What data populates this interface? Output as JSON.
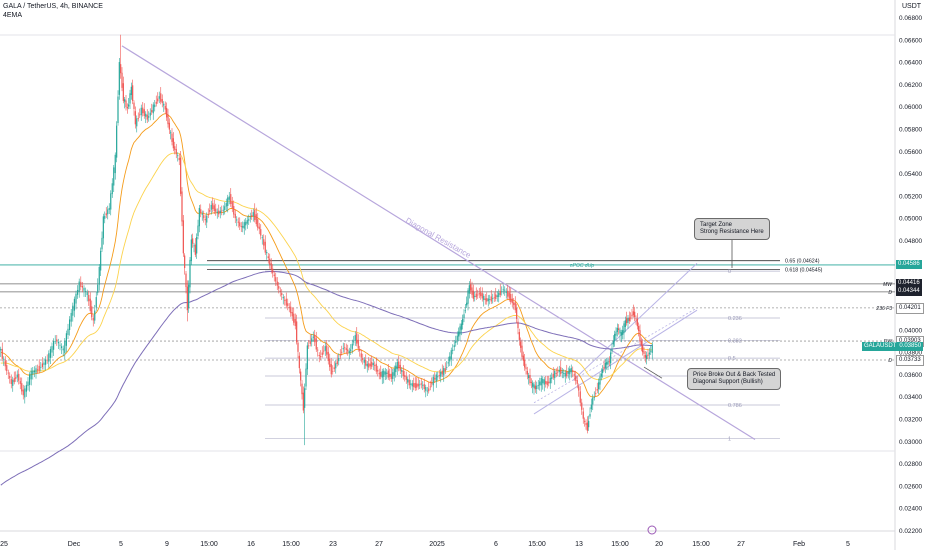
{
  "header": {
    "title": "GALA / TetherUS, 4h, BINANCE",
    "indicator": "4EMA",
    "currency": "USDT"
  },
  "colors": {
    "up": "#26a69a",
    "down": "#ef5350",
    "ema_fast": "#f59c1a",
    "ema_mid": "#fcd34d",
    "ema_slow": "#7e6fb8",
    "diag": "#b7a6dc",
    "channel": "#b9b4e6",
    "fib": "#b6b6cc",
    "level": "#333333",
    "green_label": "#26a69a"
  },
  "chart_data": {
    "type": "candlestick",
    "ylim": [
      0.022,
      0.068
    ],
    "y_ticks": [
      "0.06800",
      "0.06600",
      "0.06400",
      "0.06200",
      "0.06000",
      "0.05800",
      "0.05600",
      "0.05400",
      "0.05200",
      "0.05000",
      "0.04800",
      "0.04600",
      "0.04400",
      "0.04200",
      "0.04000",
      "0.03800",
      "0.03600",
      "0.03400",
      "0.03200",
      "0.03000",
      "0.02800",
      "0.02600",
      "0.02400",
      "0.02200"
    ],
    "x_ticks": [
      "25",
      "Dec",
      "5",
      "9",
      "15:00",
      "16",
      "15:00",
      "23",
      "27",
      "2025",
      "6",
      "15:00",
      "13",
      "15:00",
      "20",
      "15:00",
      "27",
      "Feb",
      "5"
    ],
    "price_labels": [
      {
        "text": "0.04586",
        "value": 0.04586,
        "style": "green"
      },
      {
        "text": "0.04416",
        "value": 0.04416,
        "style": "dark",
        "tag": "MW"
      },
      {
        "text": "0.04344",
        "value": 0.04344,
        "style": "dark",
        "tag": "D"
      },
      {
        "text": "0.04201",
        "value": 0.04201,
        "style": "plain",
        "tag": "236 F3"
      },
      {
        "text": "0.03903",
        "value": 0.03903,
        "style": "plain",
        "tag": "DW"
      },
      {
        "text": "GALAUSDT",
        "value": 0.0385,
        "style": "green",
        "extra": "0.03850"
      },
      {
        "text": "0.03733",
        "value": 0.03733,
        "style": "plain",
        "tag": "D"
      }
    ],
    "levels": [
      {
        "value": 0.04416,
        "label": "MW"
      },
      {
        "value": 0.04344,
        "label": "D"
      },
      {
        "value": 0.04201,
        "label": "236 F3"
      },
      {
        "value": 0.03903,
        "label": "DW"
      },
      {
        "value": 0.03733,
        "label": "D"
      }
    ],
    "annotations": [
      {
        "text": "0.65 (0.04624)",
        "value": 0.04624
      },
      {
        "text": "0.618 (0.04545)",
        "value": 0.04545
      },
      {
        "text": "nPOC dUp",
        "value": 0.04586
      }
    ],
    "fib": [
      {
        "label": "0",
        "value": 0.0453
      },
      {
        "label": "0.236",
        "value": 0.0411
      },
      {
        "label": "0.382",
        "value": 0.0391
      },
      {
        "label": "0.5",
        "value": 0.0375
      },
      {
        "label": "0.618",
        "value": 0.0359
      },
      {
        "label": "0.786",
        "value": 0.0333
      },
      {
        "label": "1",
        "value": 0.0303
      }
    ],
    "diagonal_label": "Diagonal Resistance",
    "callouts": [
      {
        "lines": [
          "Target Zone",
          "Strong Resistance Here"
        ]
      },
      {
        "lines": [
          "Price Broke Out & Back Tested",
          "Diagonal Support (Bullish)"
        ]
      }
    ],
    "path_points": [
      [
        0,
        0.0385
      ],
      [
        6,
        0.0368
      ],
      [
        12,
        0.0352
      ],
      [
        18,
        0.036
      ],
      [
        24,
        0.0342
      ],
      [
        32,
        0.0362
      ],
      [
        40,
        0.0366
      ],
      [
        48,
        0.0374
      ],
      [
        56,
        0.0392
      ],
      [
        64,
        0.0382
      ],
      [
        72,
        0.0415
      ],
      [
        80,
        0.0442
      ],
      [
        88,
        0.0432
      ],
      [
        94,
        0.0407
      ],
      [
        100,
        0.0455
      ],
      [
        104,
        0.05
      ],
      [
        110,
        0.051
      ],
      [
        116,
        0.0555
      ],
      [
        120,
        0.064
      ],
      [
        124,
        0.0608
      ],
      [
        128,
        0.0598
      ],
      [
        132,
        0.0618
      ],
      [
        136,
        0.0585
      ],
      [
        142,
        0.0598
      ],
      [
        148,
        0.059
      ],
      [
        154,
        0.06
      ],
      [
        160,
        0.061
      ],
      [
        166,
        0.0598
      ],
      [
        170,
        0.058
      ],
      [
        174,
        0.0565
      ],
      [
        180,
        0.0552
      ],
      [
        184,
        0.047
      ],
      [
        188,
        0.042
      ],
      [
        192,
        0.0482
      ],
      [
        196,
        0.047
      ],
      [
        200,
        0.0508
      ],
      [
        206,
        0.0498
      ],
      [
        212,
        0.0512
      ],
      [
        218,
        0.0505
      ],
      [
        224,
        0.0508
      ],
      [
        230,
        0.052
      ],
      [
        236,
        0.05
      ],
      [
        242,
        0.0492
      ],
      [
        248,
        0.0498
      ],
      [
        254,
        0.0505
      ],
      [
        260,
        0.049
      ],
      [
        266,
        0.0472
      ],
      [
        272,
        0.0455
      ],
      [
        278,
        0.044
      ],
      [
        284,
        0.0428
      ],
      [
        290,
        0.042
      ],
      [
        296,
        0.0405
      ],
      [
        300,
        0.0365
      ],
      [
        304,
        0.033
      ],
      [
        308,
        0.0385
      ],
      [
        314,
        0.0395
      ],
      [
        320,
        0.0375
      ],
      [
        326,
        0.0385
      ],
      [
        332,
        0.0362
      ],
      [
        338,
        0.0372
      ],
      [
        344,
        0.0385
      ],
      [
        350,
        0.038
      ],
      [
        356,
        0.0395
      ],
      [
        362,
        0.0375
      ],
      [
        368,
        0.0368
      ],
      [
        374,
        0.037
      ],
      [
        380,
        0.036
      ],
      [
        386,
        0.0362
      ],
      [
        392,
        0.0358
      ],
      [
        398,
        0.037
      ],
      [
        404,
        0.036
      ],
      [
        410,
        0.0352
      ],
      [
        416,
        0.035
      ],
      [
        422,
        0.0352
      ],
      [
        428,
        0.0345
      ],
      [
        434,
        0.0356
      ],
      [
        440,
        0.036
      ],
      [
        446,
        0.0365
      ],
      [
        452,
        0.038
      ],
      [
        458,
        0.0395
      ],
      [
        462,
        0.0405
      ],
      [
        466,
        0.042
      ],
      [
        470,
        0.044
      ],
      [
        474,
        0.043
      ],
      [
        480,
        0.0433
      ],
      [
        486,
        0.0427
      ],
      [
        492,
        0.0428
      ],
      [
        498,
        0.0431
      ],
      [
        504,
        0.0437
      ],
      [
        510,
        0.043
      ],
      [
        516,
        0.042
      ],
      [
        520,
        0.039
      ],
      [
        524,
        0.0372
      ],
      [
        528,
        0.036
      ],
      [
        532,
        0.0352
      ],
      [
        536,
        0.0348
      ],
      [
        542,
        0.0355
      ],
      [
        548,
        0.0352
      ],
      [
        554,
        0.036
      ],
      [
        560,
        0.0364
      ],
      [
        566,
        0.036
      ],
      [
        572,
        0.0365
      ],
      [
        578,
        0.0352
      ],
      [
        584,
        0.032
      ],
      [
        588,
        0.0312
      ],
      [
        592,
        0.0335
      ],
      [
        598,
        0.0348
      ],
      [
        602,
        0.0362
      ],
      [
        606,
        0.037
      ],
      [
        610,
        0.0372
      ],
      [
        614,
        0.0392
      ],
      [
        618,
        0.0402
      ],
      [
        622,
        0.0396
      ],
      [
        626,
        0.0408
      ],
      [
        630,
        0.041
      ],
      [
        634,
        0.0416
      ],
      [
        638,
        0.0405
      ],
      [
        642,
        0.0385
      ],
      [
        646,
        0.0375
      ],
      [
        650,
        0.038
      ],
      [
        653,
        0.0385
      ]
    ]
  }
}
